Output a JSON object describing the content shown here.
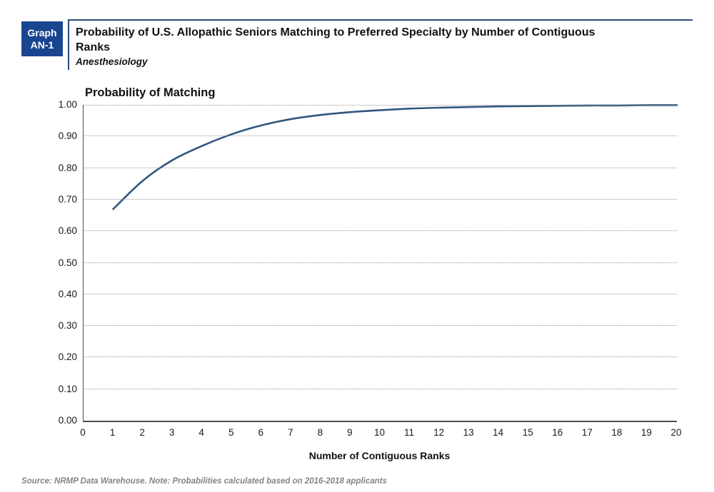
{
  "colors": {
    "badge_bg": "#1A4591",
    "badge_text": "#ffffff",
    "header_rule": "#2E4D7B",
    "line": "#31567E",
    "gridline": "#9a9a9a",
    "axis": "#4d4d4d",
    "footer_text": "#858585"
  },
  "header": {
    "badge": {
      "line1": "Graph",
      "line2": "AN-1"
    },
    "title": "Probability of U.S. Allopathic Seniors Matching to Preferred Specialty by Number of Contiguous Ranks",
    "subtitle": "Anesthesiology"
  },
  "chart_data": {
    "type": "line",
    "title": "Probability of Matching",
    "xlabel": "Number of Contiguous Ranks",
    "ylabel": "",
    "legend": "none",
    "grid": "horizontal dotted",
    "xlim": [
      0,
      20
    ],
    "ylim": [
      0.0,
      1.0
    ],
    "x_ticks": [
      "0",
      "1",
      "2",
      "3",
      "4",
      "5",
      "6",
      "7",
      "8",
      "9",
      "10",
      "11",
      "12",
      "13",
      "14",
      "15",
      "16",
      "17",
      "18",
      "19",
      "20"
    ],
    "y_ticks": [
      "0.00",
      "0.10",
      "0.20",
      "0.30",
      "0.40",
      "0.50",
      "0.60",
      "0.70",
      "0.80",
      "0.90",
      "1.00"
    ],
    "series_name": "Anesthesiology",
    "x": [
      1,
      2,
      3,
      4,
      5,
      6,
      7,
      8,
      9,
      10,
      11,
      12,
      13,
      14,
      15,
      16,
      17,
      18,
      19,
      20
    ],
    "values": [
      0.67,
      0.76,
      0.825,
      0.87,
      0.907,
      0.935,
      0.955,
      0.968,
      0.977,
      0.983,
      0.988,
      0.991,
      0.993,
      0.995,
      0.996,
      0.997,
      0.998,
      0.998,
      0.999,
      0.999
    ]
  },
  "footer": {
    "text": "Source: NRMP Data Warehouse. Note: Probabilities calculated based on 2016-2018 applicants"
  }
}
